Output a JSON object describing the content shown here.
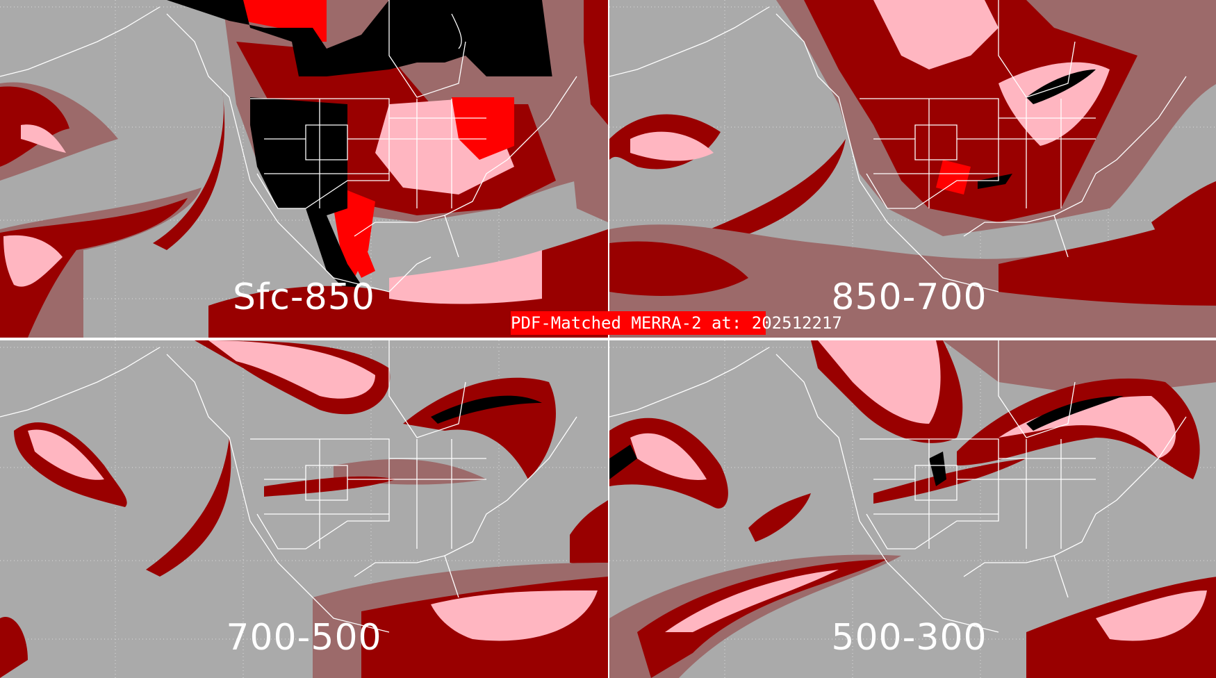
{
  "title": "PDF-Matched MERRA-2 at: 202512217",
  "panels": [
    {
      "label": "Sfc-850"
    },
    {
      "label": "850-700"
    },
    {
      "label": "700-500"
    },
    {
      "label": "500-300"
    }
  ],
  "colors": {
    "background": "#aaaaaa",
    "dark_red": "#990000",
    "brown_gray": "#9c6a6a",
    "pink": "#ffb6c1",
    "red": "#ff0000",
    "black": "#000000",
    "map_lines": "#ffffff",
    "title_bar": "#ff0000"
  }
}
